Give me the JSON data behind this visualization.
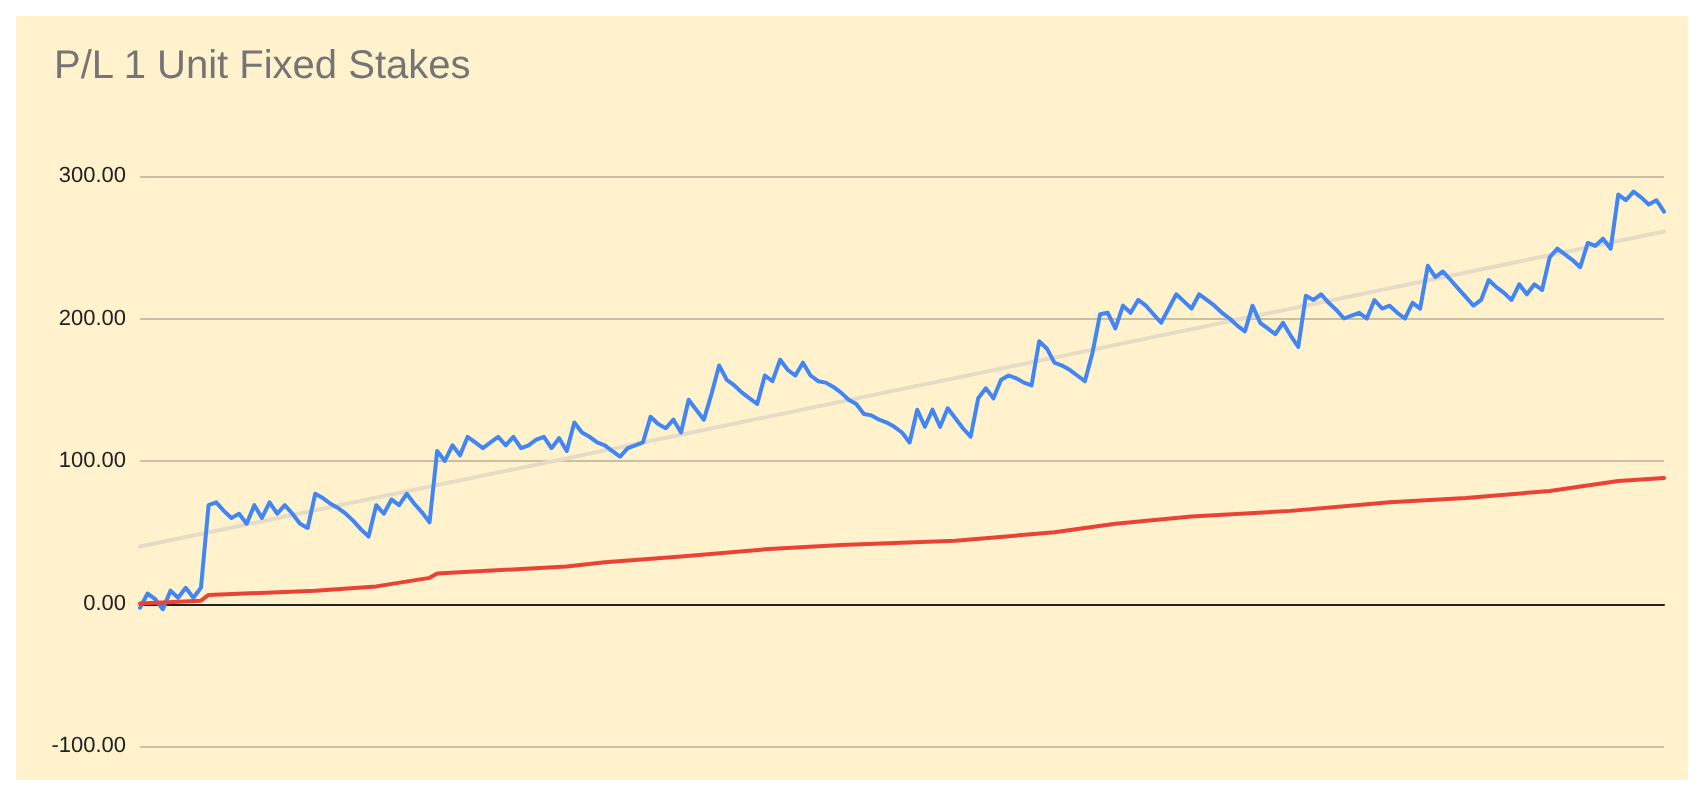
{
  "chart_data": {
    "type": "line",
    "title": "P/L 1 Unit Fixed Stakes",
    "ylim": [
      -100,
      300
    ],
    "yticks": [
      {
        "value": -100,
        "label": "-100.00"
      },
      {
        "value": 0,
        "label": "0.00"
      },
      {
        "value": 100,
        "label": "100.00"
      },
      {
        "value": 200,
        "label": "200.00"
      },
      {
        "value": 300,
        "label": "300.00"
      }
    ],
    "categories": [
      null,
      null,
      null,
      null,
      null,
      null,
      null,
      null,
      null,
      null,
      null,
      null,
      null,
      null,
      null,
      null,
      null,
      null,
      null,
      null,
      null,
      null,
      null,
      null,
      null,
      null,
      null,
      null,
      null,
      null,
      null,
      null,
      null,
      null,
      null,
      null,
      null,
      null,
      null,
      null,
      null,
      null,
      null,
      null,
      null,
      null,
      null,
      null,
      null,
      null,
      null,
      null,
      null,
      null,
      null,
      null,
      null,
      null,
      null,
      null,
      null,
      null,
      null,
      null,
      null,
      null,
      null,
      null,
      null,
      null,
      null,
      null,
      null,
      null,
      null,
      null,
      null,
      null,
      null,
      null,
      null,
      null,
      null,
      null,
      null,
      null,
      null,
      null,
      null,
      null,
      null,
      null,
      null,
      null,
      null,
      null,
      null,
      null,
      null,
      null,
      null,
      null,
      null,
      null,
      null,
      null,
      null,
      null,
      null,
      null,
      null,
      null,
      null,
      null,
      null,
      null,
      null,
      null,
      null,
      null,
      null,
      null,
      null,
      null,
      null,
      null,
      null,
      null,
      null,
      null,
      null,
      null,
      null,
      null,
      null,
      null,
      null,
      null,
      null,
      null,
      null,
      null,
      null,
      null,
      null,
      null,
      null,
      null,
      null,
      null,
      null,
      null,
      null,
      null,
      null,
      null,
      null,
      null,
      null,
      null,
      null,
      null,
      null,
      null,
      null,
      null,
      null,
      null,
      null,
      null,
      null,
      null,
      null,
      null,
      null,
      null,
      null,
      null,
      null,
      null,
      null,
      null,
      null,
      null,
      null,
      null,
      null,
      null,
      null,
      null,
      null,
      null,
      null,
      null,
      null,
      null,
      null,
      null,
      null,
      null,
      null
    ],
    "tick_labels": "y",
    "grid": "y",
    "line_style": "solid",
    "series": [
      {
        "color": "#4285f4",
        "values": [
          -3,
          7,
          3,
          -4,
          9,
          4,
          11,
          4,
          11,
          69,
          71,
          65,
          60,
          63,
          56,
          69,
          60,
          71,
          63,
          69,
          63,
          56,
          53,
          77,
          74,
          70,
          67,
          63,
          58,
          52,
          47,
          69,
          63,
          73,
          69,
          77,
          70,
          64,
          57,
          107,
          100,
          111,
          104,
          117,
          113,
          109,
          113,
          117,
          111,
          117,
          109,
          111,
          115,
          117,
          109,
          116,
          107,
          127,
          120,
          117,
          113,
          111,
          107,
          103,
          109,
          111,
          113,
          131,
          126,
          123,
          129,
          120,
          143,
          136,
          129,
          147,
          167,
          157,
          153,
          148,
          144,
          140,
          160,
          156,
          171,
          164,
          160,
          169,
          160,
          156,
          155,
          152,
          148,
          143,
          140,
          133,
          132,
          129,
          127,
          124,
          120,
          113,
          136,
          124,
          136,
          124,
          137,
          130,
          123,
          117,
          144,
          151,
          144,
          157,
          160,
          158,
          155,
          153,
          184,
          179,
          169,
          167,
          164,
          160,
          156,
          176,
          203,
          204,
          193,
          209,
          204,
          213,
          209,
          203,
          197,
          207,
          217,
          212,
          207,
          217,
          213,
          209,
          204,
          200,
          195,
          191,
          209,
          197,
          193,
          189,
          197,
          188,
          180,
          216,
          213,
          217,
          211,
          206,
          200,
          202,
          204,
          200,
          213,
          207,
          209,
          204,
          200,
          211,
          207,
          237,
          229,
          233,
          227,
          221,
          215,
          209,
          213,
          227,
          222,
          218,
          213,
          224,
          217,
          224,
          220,
          243,
          249,
          245,
          241,
          236,
          253,
          251,
          256,
          249,
          287,
          283,
          289,
          285,
          280,
          283,
          275
        ]
      },
      {
        "color": "#ea4335",
        "values": [
          0,
          null,
          null,
          null,
          null,
          null,
          null,
          null,
          2,
          6,
          null,
          null,
          null,
          null,
          null,
          null,
          null,
          null,
          null,
          null,
          null,
          null,
          null,
          9,
          null,
          null,
          null,
          null,
          null,
          null,
          null,
          12,
          null,
          null,
          null,
          null,
          null,
          null,
          18,
          21,
          null,
          null,
          null,
          null,
          null,
          null,
          null,
          null,
          null,
          null,
          null,
          null,
          null,
          null,
          null,
          null,
          26,
          null,
          null,
          null,
          null,
          29,
          null,
          null,
          null,
          null,
          null,
          null,
          null,
          null,
          null,
          33,
          null,
          null,
          null,
          null,
          null,
          null,
          null,
          null,
          null,
          null,
          38,
          null,
          null,
          null,
          null,
          null,
          null,
          null,
          null,
          null,
          41,
          null,
          null,
          null,
          null,
          null,
          null,
          null,
          null,
          null,
          null,
          null,
          null,
          null,
          null,
          44,
          null,
          null,
          null,
          null,
          null,
          null,
          null,
          null,
          null,
          null,
          null,
          null,
          50,
          null,
          null,
          null,
          null,
          null,
          null,
          null,
          56,
          null,
          null,
          null,
          null,
          null,
          null,
          null,
          null,
          null,
          61,
          null,
          null,
          null,
          null,
          null,
          null,
          null,
          null,
          null,
          null,
          null,
          null,
          65,
          null,
          null,
          null,
          null,
          null,
          null,
          null,
          null,
          null,
          null,
          null,
          null,
          71,
          null,
          null,
          null,
          null,
          null,
          null,
          null,
          null,
          null,
          74,
          null,
          null,
          null,
          null,
          null,
          null,
          null,
          null,
          null,
          null,
          79,
          null,
          null,
          null,
          null,
          null,
          null,
          null,
          null,
          86,
          null,
          null,
          null,
          null,
          null,
          88
        ]
      },
      {
        "color": "#e6dcc6",
        "values": [
          40,
          null,
          null,
          null,
          null,
          null,
          null,
          null,
          null,
          null,
          null,
          null,
          null,
          null,
          null,
          null,
          null,
          null,
          null,
          null,
          null,
          null,
          null,
          null,
          null,
          null,
          null,
          null,
          null,
          null,
          null,
          null,
          null,
          null,
          null,
          null,
          null,
          null,
          null,
          null,
          null,
          null,
          null,
          null,
          null,
          null,
          null,
          null,
          null,
          null,
          null,
          null,
          null,
          null,
          null,
          null,
          null,
          null,
          null,
          null,
          null,
          null,
          null,
          null,
          null,
          null,
          null,
          null,
          null,
          null,
          null,
          null,
          null,
          null,
          null,
          null,
          null,
          null,
          null,
          null,
          null,
          null,
          null,
          null,
          null,
          null,
          null,
          null,
          null,
          null,
          null,
          null,
          null,
          null,
          null,
          null,
          null,
          null,
          null,
          null,
          null,
          null,
          null,
          null,
          null,
          null,
          null,
          null,
          null,
          null,
          null,
          null,
          null,
          null,
          null,
          null,
          null,
          null,
          null,
          null,
          null,
          null,
          null,
          null,
          null,
          null,
          null,
          null,
          null,
          null,
          null,
          null,
          null,
          null,
          null,
          null,
          null,
          null,
          null,
          null,
          null,
          null,
          null,
          null,
          null,
          null,
          null,
          null,
          null,
          null,
          null,
          null,
          null,
          null,
          null,
          null,
          null,
          null,
          null,
          null,
          null,
          null,
          null,
          null,
          null,
          null,
          null,
          null,
          null,
          null,
          null,
          null,
          null,
          null,
          null,
          null,
          null,
          null,
          null,
          null,
          null,
          null,
          null,
          null,
          null,
          null,
          null,
          null,
          null,
          null,
          null,
          null,
          null,
          null,
          null,
          null,
          null,
          null,
          null,
          null,
          261
        ]
      }
    ]
  }
}
